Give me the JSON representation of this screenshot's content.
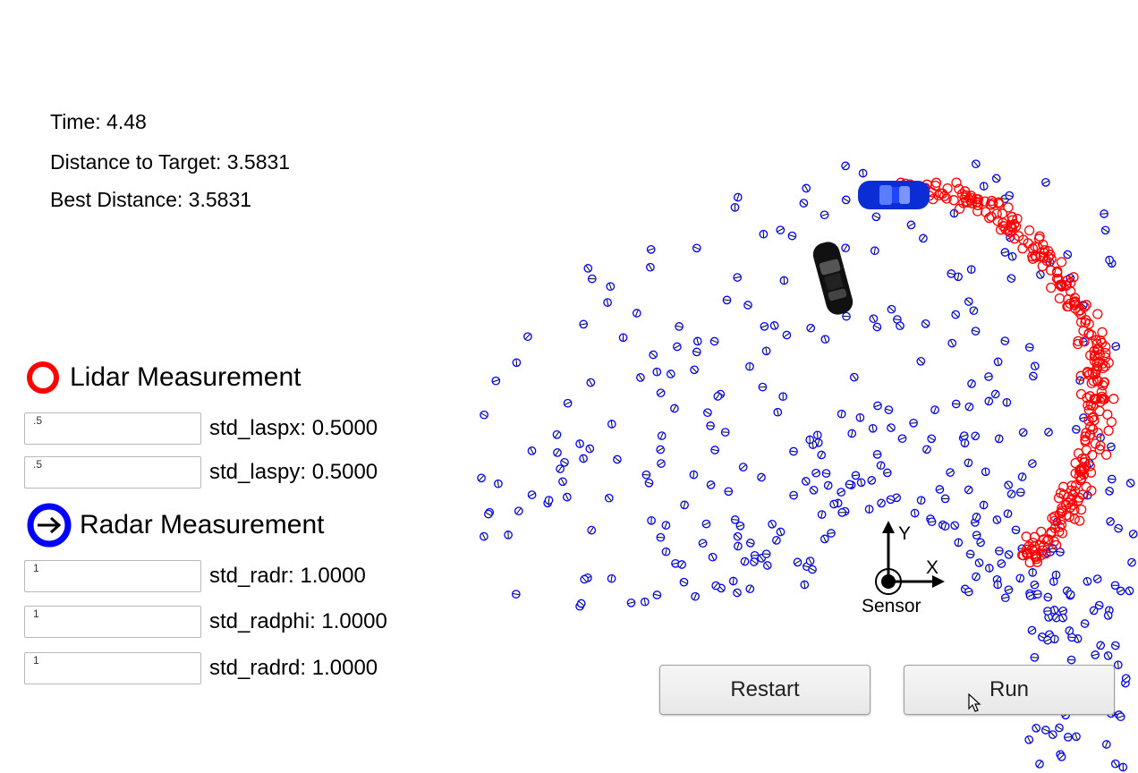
{
  "stats": {
    "time": "Time: 4.48",
    "distance": "Distance to Target: 3.5831",
    "best": "Best Distance: 3.5831"
  },
  "lidar": {
    "label": "Lidar Measurement",
    "color": "#ff0000",
    "params": [
      {
        "value": ".5",
        "label": "std_laspx: 0.5000"
      },
      {
        "value": ".5",
        "label": "std_laspy: 0.5000"
      }
    ]
  },
  "radar": {
    "label": "Radar Measurement",
    "color": "#0000ff",
    "params": [
      {
        "value": "1",
        "label": "std_radr: 1.0000"
      },
      {
        "value": "1",
        "label": "std_radphi: 1.0000"
      },
      {
        "value": "1",
        "label": "std_radrd: 1.0000"
      }
    ]
  },
  "sensor": {
    "label": "Sensor",
    "x_axis": "X",
    "y_axis": "Y"
  },
  "buttons": {
    "restart": "Restart",
    "run": "Run"
  },
  "icons": {
    "lidar": "red-ring-icon",
    "radar": "blue-ring-arrow-icon",
    "cursor": "mouse-pointer-icon",
    "hunter": "black-car-icon",
    "target": "blue-car-icon"
  }
}
